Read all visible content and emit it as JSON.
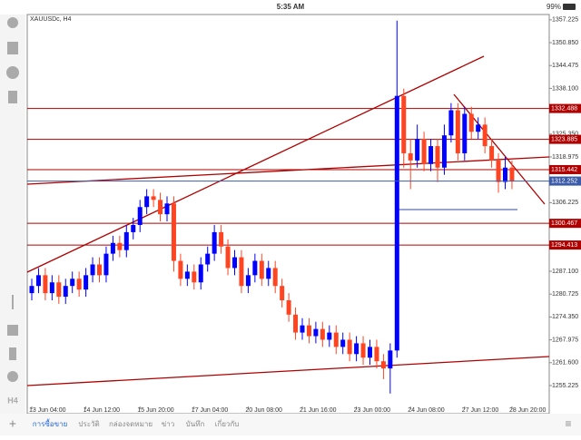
{
  "status_bar": {
    "time": "5:35 AM",
    "battery": "99%"
  },
  "toolbar": {
    "timeframe": "H4"
  },
  "tabs": [
    "การซื้อขาย",
    "ประวัติ",
    "กล่องจดหมาย",
    "ข่าว",
    "บันทึก",
    "เกี่ยวกับ"
  ],
  "chart_data": {
    "type": "candlestick",
    "title": "XAUUSDc, H4",
    "categories": [
      "13 Jun 04:00",
      null,
      null,
      null,
      null,
      null,
      null,
      null,
      "14 Jun 12:00",
      null,
      null,
      null,
      null,
      null,
      null,
      null,
      "15 Jun 20:00",
      null,
      null,
      null,
      null,
      null,
      null,
      null,
      "17 Jun 04:00",
      null,
      null,
      null,
      null,
      null,
      null,
      null,
      "20 Jun 08:00",
      null,
      null,
      null,
      null,
      null,
      null,
      null,
      "21 Jun 16:00",
      null,
      null,
      null,
      null,
      null,
      null,
      null,
      "23 Jun 00:00",
      null,
      null,
      null,
      null,
      null,
      null,
      null,
      "24 Jun 08:00",
      null,
      null,
      null,
      null,
      null,
      null,
      null,
      "27 Jun 12:00",
      null,
      null,
      null,
      null,
      null,
      null,
      "28 Jun 20:00"
    ],
    "open": [
      1281,
      1283,
      1286,
      1281,
      1284,
      1280,
      1283,
      1285,
      1282,
      1286,
      1289,
      1286,
      1292,
      1295,
      1293,
      1298,
      1300,
      1305,
      1308,
      1307,
      1303,
      1306,
      1290,
      1285,
      1287,
      1284,
      1289,
      1292,
      1298,
      1294,
      1288,
      1291,
      1283,
      1286,
      1290,
      1285,
      1288,
      1283,
      1279,
      1275,
      1270,
      1272,
      1269,
      1271,
      1268,
      1270,
      1266,
      1268,
      1264,
      1267,
      1263,
      1266,
      1262,
      1260,
      1265,
      1336,
      1320,
      1318,
      1324,
      1317,
      1322,
      1316,
      1325,
      1332,
      1320,
      1331,
      1326,
      1328,
      1322,
      1318,
      1312,
      1316
    ],
    "high": [
      1285,
      1288,
      1288,
      1286,
      1286,
      1285,
      1287,
      1287,
      1288,
      1291,
      1291,
      1294,
      1297,
      1297,
      1300,
      1302,
      1307,
      1310,
      1310,
      1309,
      1308,
      1308,
      1292,
      1289,
      1289,
      1291,
      1294,
      1300,
      1300,
      1296,
      1293,
      1293,
      1288,
      1292,
      1292,
      1290,
      1290,
      1285,
      1281,
      1277,
      1274,
      1274,
      1273,
      1273,
      1272,
      1272,
      1270,
      1270,
      1269,
      1269,
      1268,
      1268,
      1264,
      1267,
      1357,
      1338,
      1324,
      1328,
      1326,
      1324,
      1324,
      1328,
      1334,
      1334,
      1333,
      1333,
      1330,
      1330,
      1324,
      1320,
      1319,
      1318
    ],
    "low": [
      1279,
      1281,
      1279,
      1279,
      1278,
      1278,
      1281,
      1280,
      1280,
      1284,
      1284,
      1284,
      1290,
      1291,
      1291,
      1296,
      1298,
      1303,
      1305,
      1301,
      1301,
      1287,
      1283,
      1283,
      1282,
      1282,
      1287,
      1290,
      1292,
      1286,
      1286,
      1281,
      1281,
      1284,
      1283,
      1283,
      1281,
      1277,
      1273,
      1268,
      1268,
      1267,
      1267,
      1266,
      1266,
      1264,
      1264,
      1262,
      1262,
      1261,
      1261,
      1260,
      1257,
      1253,
      1263,
      1316,
      1310,
      1316,
      1315,
      1315,
      1312,
      1314,
      1323,
      1318,
      1318,
      1324,
      1324,
      1320,
      1316,
      1309,
      1310,
      1310
    ],
    "close": [
      1283,
      1286,
      1281,
      1284,
      1280,
      1283,
      1285,
      1282,
      1286,
      1289,
      1286,
      1292,
      1295,
      1293,
      1298,
      1300,
      1305,
      1308,
      1307,
      1303,
      1306,
      1290,
      1285,
      1287,
      1284,
      1289,
      1292,
      1298,
      1294,
      1288,
      1291,
      1283,
      1286,
      1290,
      1285,
      1288,
      1283,
      1279,
      1275,
      1270,
      1272,
      1269,
      1271,
      1268,
      1270,
      1266,
      1268,
      1264,
      1267,
      1263,
      1266,
      1262,
      1260,
      1265,
      1336,
      1320,
      1318,
      1324,
      1317,
      1322,
      1316,
      1325,
      1332,
      1320,
      1331,
      1326,
      1328,
      1322,
      1318,
      1312,
      1316,
      1312.252
    ],
    "up_color": "#0000ff",
    "down_color": "#ff4422",
    "ylim": [
      1249.4,
      1358.7
    ],
    "yticks": [
      1357.225,
      {
        "value": 1350.85,
        "label": "1350.850"
      },
      1344.475,
      {
        "value": 1338.1,
        "label": "1338.100"
      },
      {
        "value": 1325.35,
        "label": "1325.350"
      },
      1318.975,
      1306.225,
      {
        "value": 1287.1,
        "label": "1287.100"
      },
      1280.725,
      {
        "value": 1274.35,
        "label": "1274.350"
      },
      1267.975,
      {
        "value": 1261.6,
        "label": "1261.600"
      },
      1255.225
    ],
    "levels": [
      1332.488,
      1323.885,
      1315.442,
      1300.467,
      1294.413
    ],
    "level_color": "#b00000",
    "bid": 1312.252,
    "bid_color": "#3b5ba8"
  }
}
